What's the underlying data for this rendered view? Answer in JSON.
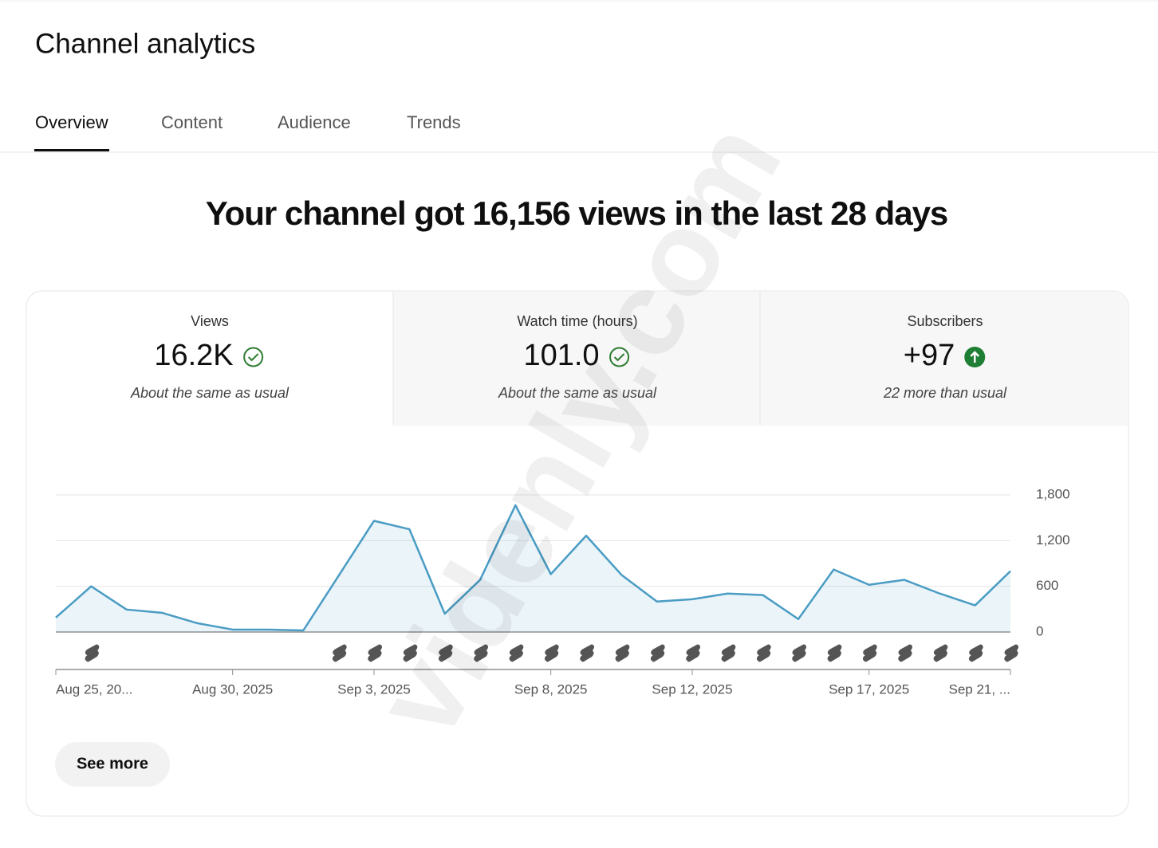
{
  "header": {
    "title": "Channel analytics"
  },
  "tabs": [
    "Overview",
    "Content",
    "Audience",
    "Trends"
  ],
  "headline": "Your channel got 16,156 views in the last 28 days",
  "metrics": [
    {
      "label": "Views",
      "value": "16.2K",
      "note": "About the same as usual"
    },
    {
      "label": "Watch time (hours)",
      "value": "101.0",
      "note": "About the same as usual"
    },
    {
      "label": "Subscribers",
      "value": "+97",
      "note": "22 more than usual"
    }
  ],
  "chart_data": {
    "type": "line",
    "categories": [
      "Aug 25, 20...",
      null,
      null,
      null,
      null,
      "Aug 30, 2025",
      null,
      null,
      null,
      "Sep 3, 2025",
      null,
      null,
      null,
      null,
      "Sep 8, 2025",
      null,
      null,
      null,
      "Sep 12, 2025",
      null,
      null,
      null,
      null,
      "Sep 17, 2025",
      null,
      null,
      null,
      "Sep 21, ..."
    ],
    "values": [
      190,
      600,
      295,
      253,
      116,
      32,
      32,
      21,
      740,
      1460,
      1350,
      240,
      685,
      1665,
      760,
      1265,
      750,
      400,
      430,
      505,
      485,
      170,
      820,
      620,
      685,
      505,
      350,
      800
    ],
    "color": "#4a9cc4",
    "ylim": [
      0,
      1800
    ],
    "yticks": [
      0,
      600,
      {
        "value": 1200,
        "label": "1,200"
      },
      {
        "value": 1800,
        "label": "1,800"
      }
    ],
    "grid": true
  },
  "button": "See more",
  "watermark": "videnly.com"
}
